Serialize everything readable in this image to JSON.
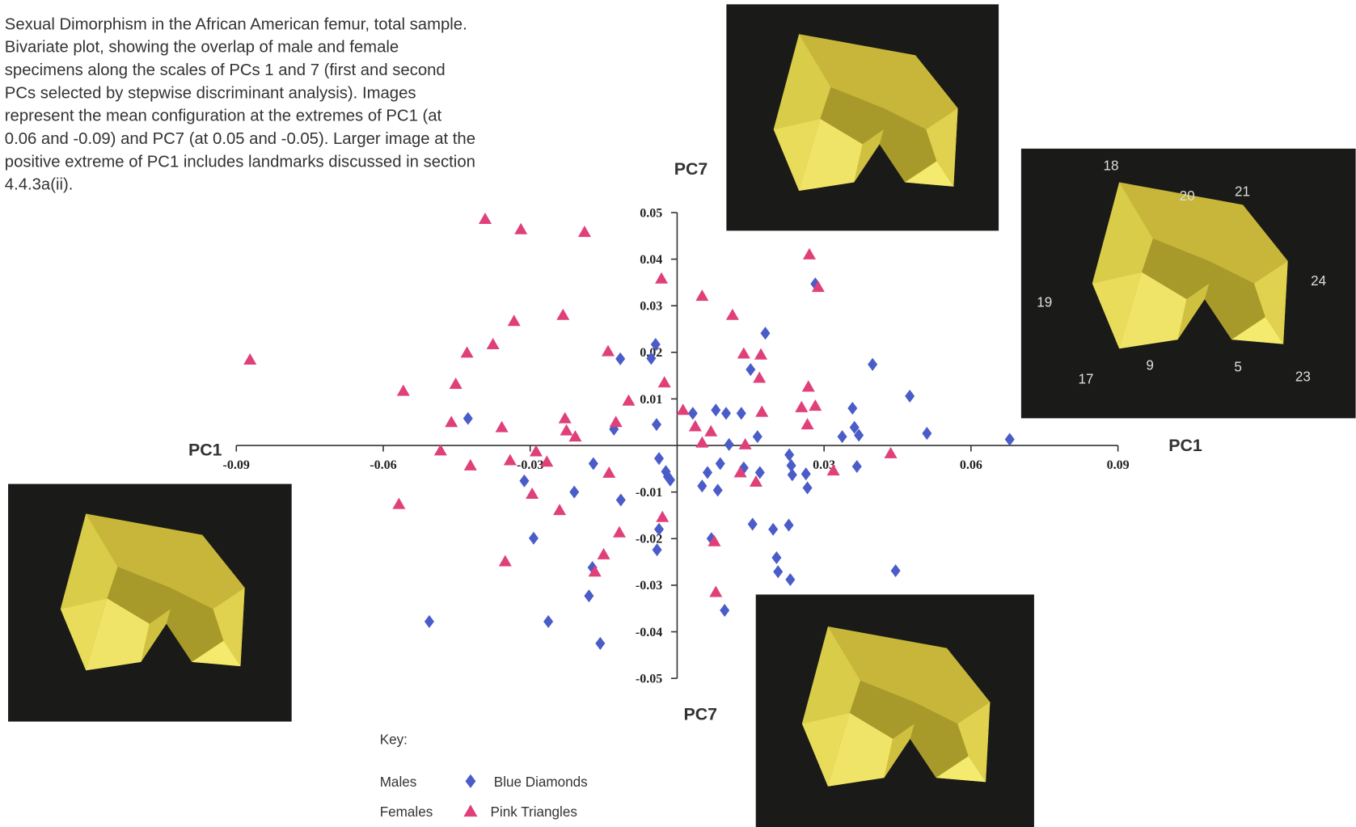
{
  "caption_lines": [
    "Sexual Dimorphism in the African American femur, total sample.",
    "Bivariate plot, showing the overlap of male and female",
    "specimens along the scales of PCs 1 and 7 (first and second",
    "PCs selected by stepwise discriminant analysis). Images",
    "represent the mean configuration at the extremes of PC1 (at",
    "0.06 and -0.09) and PC7 (at 0.05 and -0.05). Larger image at the",
    "positive extreme of PC1 includes landmarks discussed in section",
    "4.4.3a(ii)."
  ],
  "landmarks": [
    "18",
    "20",
    "21",
    "19",
    "24",
    "9",
    "5",
    "17",
    "23"
  ],
  "chart_data": {
    "type": "scatter",
    "x_label": "PC1",
    "y_label": "PC7",
    "legend_title": "Key:",
    "xlim": [
      -0.09,
      0.09
    ],
    "ylim": [
      -0.05,
      0.05
    ],
    "xticks": [
      -0.09,
      -0.06,
      -0.03,
      0.03,
      0.06,
      0.09
    ],
    "yticks": [
      0.05,
      0.04,
      0.03,
      0.02,
      0.01,
      -0.01,
      -0.02,
      -0.03,
      -0.04,
      -0.05
    ],
    "series": [
      {
        "name": "Males",
        "marker_label": "Blue Diamonds",
        "marker": "diamond",
        "color": "#4a5cc8",
        "x": [
          -0.0427,
          -0.0044,
          -0.0116,
          -0.0053,
          0.018,
          0.015,
          0.0399,
          0.0475,
          0.051,
          0.0679,
          0.0282,
          0.0358,
          0.0362,
          0.0371,
          0.0337,
          0.0367,
          0.0032,
          0.0079,
          0.01,
          0.0131,
          0.0164,
          0.0106,
          -0.0042,
          -0.0129,
          -0.0037,
          -0.0023,
          -0.0019,
          -0.0014,
          0.0088,
          0.0062,
          0.0051,
          0.0083,
          0.0136,
          0.0169,
          0.0229,
          0.0233,
          0.0235,
          0.0263,
          0.0266,
          0.0154,
          0.0196,
          0.0228,
          0.0203,
          0.0206,
          0.0231,
          0.0446,
          0.0097,
          0.007,
          -0.0037,
          -0.0041,
          -0.0171,
          -0.021,
          -0.0312,
          -0.0115,
          -0.0293,
          -0.0173,
          -0.018,
          -0.0263,
          -0.0157,
          -0.0506
        ],
        "values": [
          0.0058,
          0.0217,
          0.0186,
          0.0187,
          0.0241,
          0.0163,
          0.0174,
          0.0106,
          0.0026,
          0.0013,
          0.0347,
          0.008,
          0.0039,
          0.0022,
          0.0019,
          -0.0045,
          0.0069,
          0.0076,
          0.0069,
          0.0069,
          0.0019,
          0.0002,
          0.0045,
          0.0035,
          -0.0028,
          -0.0056,
          -0.0067,
          -0.0074,
          -0.0039,
          -0.0058,
          -0.0087,
          -0.0096,
          -0.0048,
          -0.0058,
          -0.002,
          -0.0043,
          -0.0063,
          -0.0061,
          -0.0091,
          -0.0169,
          -0.018,
          -0.0171,
          -0.0241,
          -0.0271,
          -0.0288,
          -0.0269,
          -0.0354,
          -0.02,
          -0.018,
          -0.0224,
          -0.0039,
          -0.01,
          -0.0076,
          -0.0117,
          -0.0199,
          -0.0262,
          -0.0323,
          -0.0378,
          -0.0425,
          -0.0378
        ]
      },
      {
        "name": "Females",
        "marker_label": "Pink Triangles",
        "marker": "triangle",
        "color": "#e0407a",
        "x": [
          -0.0872,
          -0.0392,
          -0.0319,
          -0.0189,
          -0.0032,
          0.0051,
          0.027,
          0.0288,
          0.0113,
          -0.0333,
          -0.0233,
          -0.0376,
          -0.0429,
          -0.0452,
          -0.0559,
          -0.0141,
          0.0136,
          0.0171,
          0.0168,
          -0.0026,
          0.0268,
          -0.0099,
          0.0012,
          0.0173,
          0.0254,
          0.0282,
          0.0266,
          0.0037,
          0.0069,
          0.0051,
          -0.0229,
          -0.0226,
          -0.0208,
          -0.0125,
          -0.0461,
          -0.0358,
          -0.0483,
          -0.0422,
          -0.0341,
          -0.0288,
          -0.0266,
          -0.0139,
          0.0139,
          0.0129,
          0.0161,
          0.0319,
          0.0436,
          -0.0296,
          -0.024,
          -0.0568,
          -0.0118,
          -0.003,
          0.0076,
          -0.015,
          -0.0168,
          -0.0351,
          0.0079
        ],
        "values": [
          0.0184,
          0.0486,
          0.0464,
          0.0458,
          0.0358,
          0.0321,
          0.041,
          0.034,
          0.028,
          0.0267,
          0.028,
          0.0217,
          0.0199,
          0.0132,
          0.0117,
          0.0202,
          0.0197,
          0.0195,
          0.0145,
          0.0135,
          0.0126,
          0.0096,
          0.0076,
          0.0072,
          0.0082,
          0.0085,
          0.0045,
          0.0041,
          0.003,
          0.0006,
          0.0058,
          0.0032,
          0.0019,
          0.005,
          0.005,
          0.0039,
          -0.0011,
          -0.0043,
          -0.0032,
          -0.0013,
          -0.0035,
          -0.0059,
          0.0002,
          -0.0058,
          -0.0078,
          -0.0054,
          -0.0017,
          -0.0104,
          -0.0139,
          -0.0126,
          -0.0187,
          -0.0154,
          -0.0206,
          -0.0234,
          -0.0271,
          -0.0249,
          -0.0315
        ]
      }
    ]
  }
}
